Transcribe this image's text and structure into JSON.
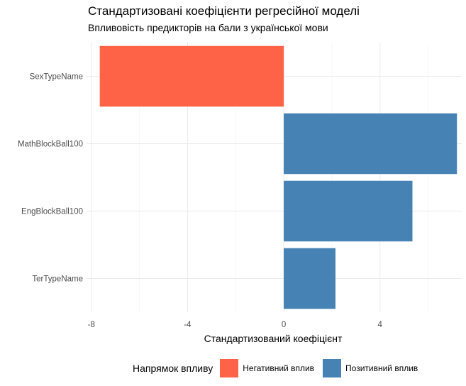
{
  "chart_data": {
    "type": "bar",
    "orientation": "horizontal",
    "title": "Стандартизовані коефіцієнти регресійної моделі",
    "subtitle": "Впливовість предикторів на бали з української мови",
    "xlabel": "Стандартизований коефіцієнт",
    "ylabel": "",
    "categories": [
      "SexTypeName",
      "MathBlockBall100",
      "EngBlockBall100",
      "TerTypeName"
    ],
    "values": [
      -7.65,
      7.2,
      5.35,
      2.15
    ],
    "direction": [
      "Негативний вплив",
      "Позитивний вплив",
      "Позитивний вплив",
      "Позитивний вплив"
    ],
    "xlim": [
      -8.2,
      7.4
    ],
    "x_ticks": [
      -8,
      -4,
      0,
      4
    ],
    "x_tick_labels": [
      "-8",
      "-4",
      "0",
      "4"
    ],
    "grid": true,
    "legend": {
      "position": "bottom",
      "title": "Напрямок впливу",
      "entries": [
        {
          "label": "Негативний вплив",
          "color": "#FF6347"
        },
        {
          "label": "Позитивний вплив",
          "color": "#4682B4"
        }
      ]
    }
  }
}
